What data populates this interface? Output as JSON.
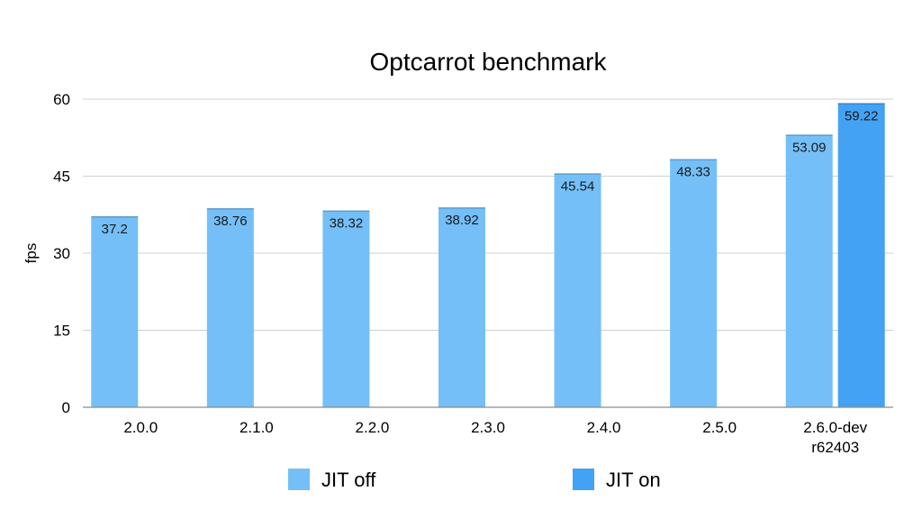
{
  "chart_data": {
    "type": "bar",
    "title": "Optcarrot benchmark",
    "xlabel": "",
    "ylabel": "fps",
    "ylim": [
      0,
      60
    ],
    "yticks": [
      0,
      15,
      30,
      45,
      60
    ],
    "grid": true,
    "legend_position": "bottom",
    "categories": [
      [
        "2.0.0"
      ],
      [
        "2.1.0"
      ],
      [
        "2.2.0"
      ],
      [
        "2.3.0"
      ],
      [
        "2.4.0"
      ],
      [
        "2.5.0"
      ],
      [
        "2.6.0-dev",
        "r62403"
      ]
    ],
    "series": [
      {
        "name": "JIT off",
        "color": "#74bff7",
        "values": [
          37.2,
          38.76,
          38.32,
          38.92,
          45.54,
          48.33,
          53.09
        ],
        "labels": [
          "37.2",
          "38.76",
          "38.32",
          "38.92",
          "45.54",
          "48.33",
          "53.09"
        ]
      },
      {
        "name": "JIT on",
        "color": "#44a2f4",
        "values": [
          null,
          null,
          null,
          null,
          null,
          null,
          59.22
        ],
        "labels": [
          "",
          "",
          "",
          "",
          "",
          "",
          "59.22"
        ]
      }
    ]
  }
}
